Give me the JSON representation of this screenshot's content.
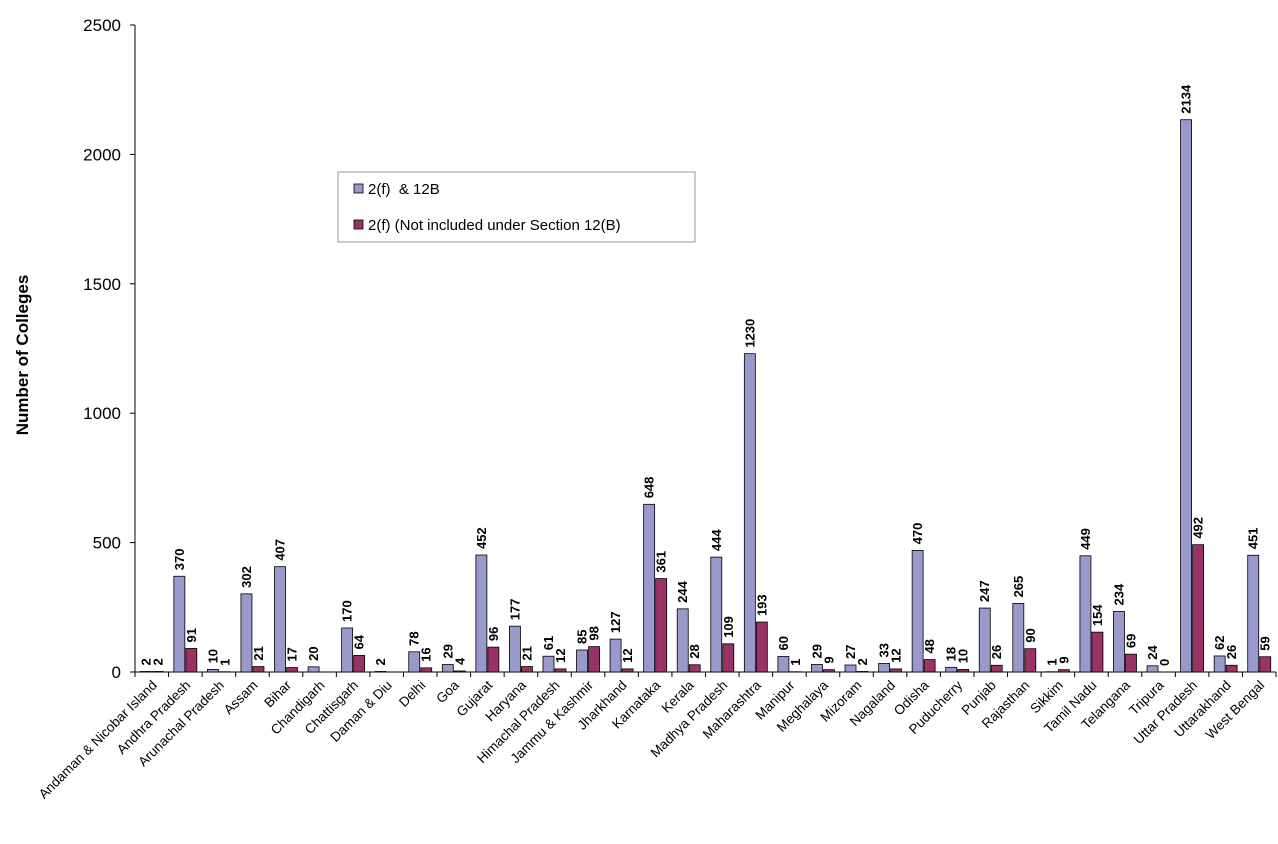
{
  "chart_data": {
    "type": "bar",
    "title": "",
    "xlabel": "",
    "ylabel": "Number of Colleges",
    "ylim": [
      0,
      2500
    ],
    "yticks": [
      0,
      500,
      1000,
      1500,
      2000,
      2500
    ],
    "grid": false,
    "legend_position": "upper-center",
    "categories": [
      "Andaman & Nicobar Island",
      "Andhra Pradesh",
      "Arunachal Pradesh",
      "Assam",
      "Bihar",
      "Chandigarh",
      "Chattisgarh",
      "Daman & Diu",
      "Delhi",
      "Goa",
      "Gujarat",
      "Haryana",
      "Himachal Pradesh",
      "Jammu & Kashmir",
      "Jharkhand",
      "Karnataka",
      "Kerala",
      "Madhya Pradesh",
      "Maharashtra",
      "Manipur",
      "Meghalaya",
      "Mizoram",
      "Nagaland",
      "Odisha",
      "Puducherry",
      "Punjab",
      "Rajasthan",
      "Sikkim",
      "Tamil Nadu",
      "Telangana",
      "Tripura",
      "Uttar Pradesh",
      "Uttarakhand",
      "West Bengal"
    ],
    "series": [
      {
        "name": "2(f)  & 12B",
        "color": "#9999cc",
        "values": [
          2,
          370,
          10,
          302,
          407,
          20,
          170,
          2,
          78,
          29,
          452,
          177,
          61,
          85,
          127,
          648,
          244,
          444,
          1230,
          60,
          29,
          27,
          33,
          470,
          18,
          247,
          265,
          1,
          449,
          234,
          24,
          2134,
          62,
          451
        ],
        "labels": [
          "2",
          "370",
          "10",
          "302",
          "407",
          "20",
          "170",
          "2",
          "78",
          "29",
          "452",
          "177",
          "61",
          "85",
          "127",
          "648",
          "244",
          "444",
          "1230",
          "60",
          "29",
          "27",
          "33",
          "470",
          "18",
          "247",
          "265",
          "1",
          "449",
          "234",
          "24",
          "2134",
          "62",
          "451"
        ]
      },
      {
        "name": "2(f) (Not included under Section 12(B)",
        "color": "#993366",
        "values": [
          2,
          91,
          1,
          21,
          17,
          0,
          64,
          0,
          16,
          4,
          96,
          21,
          12,
          98,
          12,
          361,
          28,
          109,
          193,
          1,
          9,
          2,
          12,
          48,
          10,
          26,
          90,
          9,
          154,
          69,
          0,
          492,
          26,
          59
        ],
        "labels": [
          "2",
          "91",
          "1",
          "21",
          "17",
          "",
          "64",
          "",
          "16",
          "4",
          "96",
          "21",
          "12",
          "98",
          "12",
          "361",
          "28",
          "109",
          "193",
          "1",
          "9",
          "2",
          "12",
          "48",
          "10",
          "26",
          "90",
          "9",
          "154",
          "69",
          "0",
          "492",
          "26",
          "59"
        ]
      }
    ]
  }
}
